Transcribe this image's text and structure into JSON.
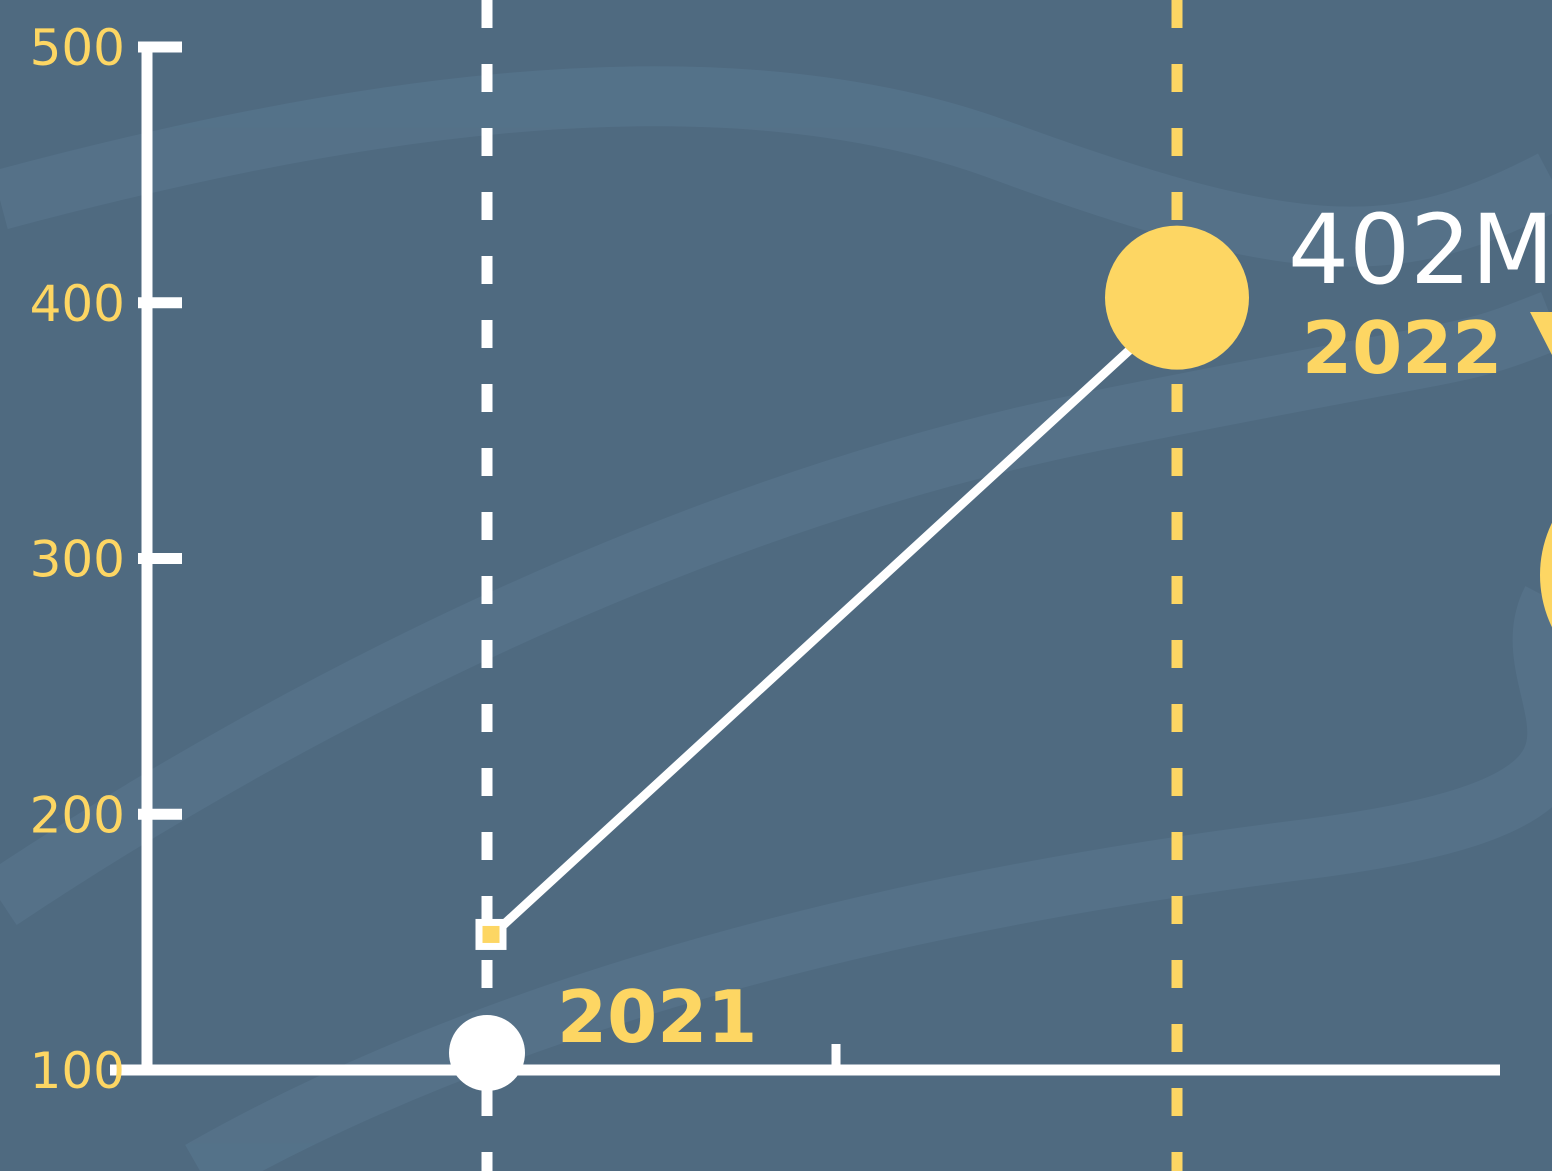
{
  "colors": {
    "background": "#4f6a80",
    "background_wave": "#5a7890",
    "axis": "#ffffff",
    "accent": "#fdd663"
  },
  "chart_data": {
    "type": "line",
    "title": "",
    "xlabel": "",
    "ylabel": "",
    "ylim": [
      100,
      500
    ],
    "yticks": [
      "500",
      "400",
      "300",
      "200",
      "100"
    ],
    "grid": false,
    "legend": "none",
    "x": [
      "2021",
      "2022"
    ],
    "series": [
      {
        "values": [
          153,
          402
        ]
      }
    ],
    "value_label": "402M",
    "category_labels": [
      "2021",
      "2022"
    ]
  }
}
